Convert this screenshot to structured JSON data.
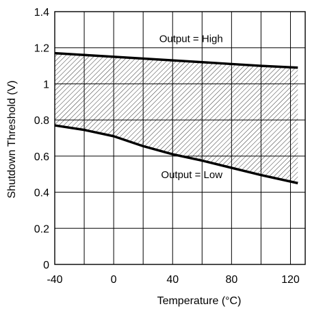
{
  "chart_data": {
    "type": "line",
    "title": "",
    "xlabel": "Temperature (°C)",
    "ylabel": "Shutdown Threshold (V)",
    "xlim": [
      -40,
      130
    ],
    "ylim": [
      0,
      1.4
    ],
    "grid": true,
    "x_ticks": [
      -40,
      0,
      40,
      80,
      120
    ],
    "x_tick_labels": [
      "-40",
      "0",
      "40",
      "80",
      "120"
    ],
    "y_ticks": [
      0,
      0.2,
      0.4,
      0.6,
      0.8,
      1,
      1.2,
      1.4
    ],
    "y_tick_labels": [
      "0",
      "0.2",
      "0.4",
      "0.6",
      "0.8",
      "1",
      "1.2",
      "1.4"
    ],
    "series": [
      {
        "x": [
          -40,
          -20,
          0,
          20,
          40,
          60,
          80,
          100,
          125
        ],
        "y": [
          1.17,
          1.16,
          1.15,
          1.14,
          1.13,
          1.12,
          1.11,
          1.1,
          1.09
        ]
      },
      {
        "x": [
          -40,
          -20,
          0,
          20,
          40,
          60,
          80,
          100,
          125
        ],
        "y": [
          0.77,
          0.745,
          0.71,
          0.655,
          0.61,
          0.575,
          0.535,
          0.495,
          0.45
        ]
      }
    ],
    "shaded_region": "between series",
    "annotations": [
      "Output = High",
      "Output = Low"
    ]
  }
}
